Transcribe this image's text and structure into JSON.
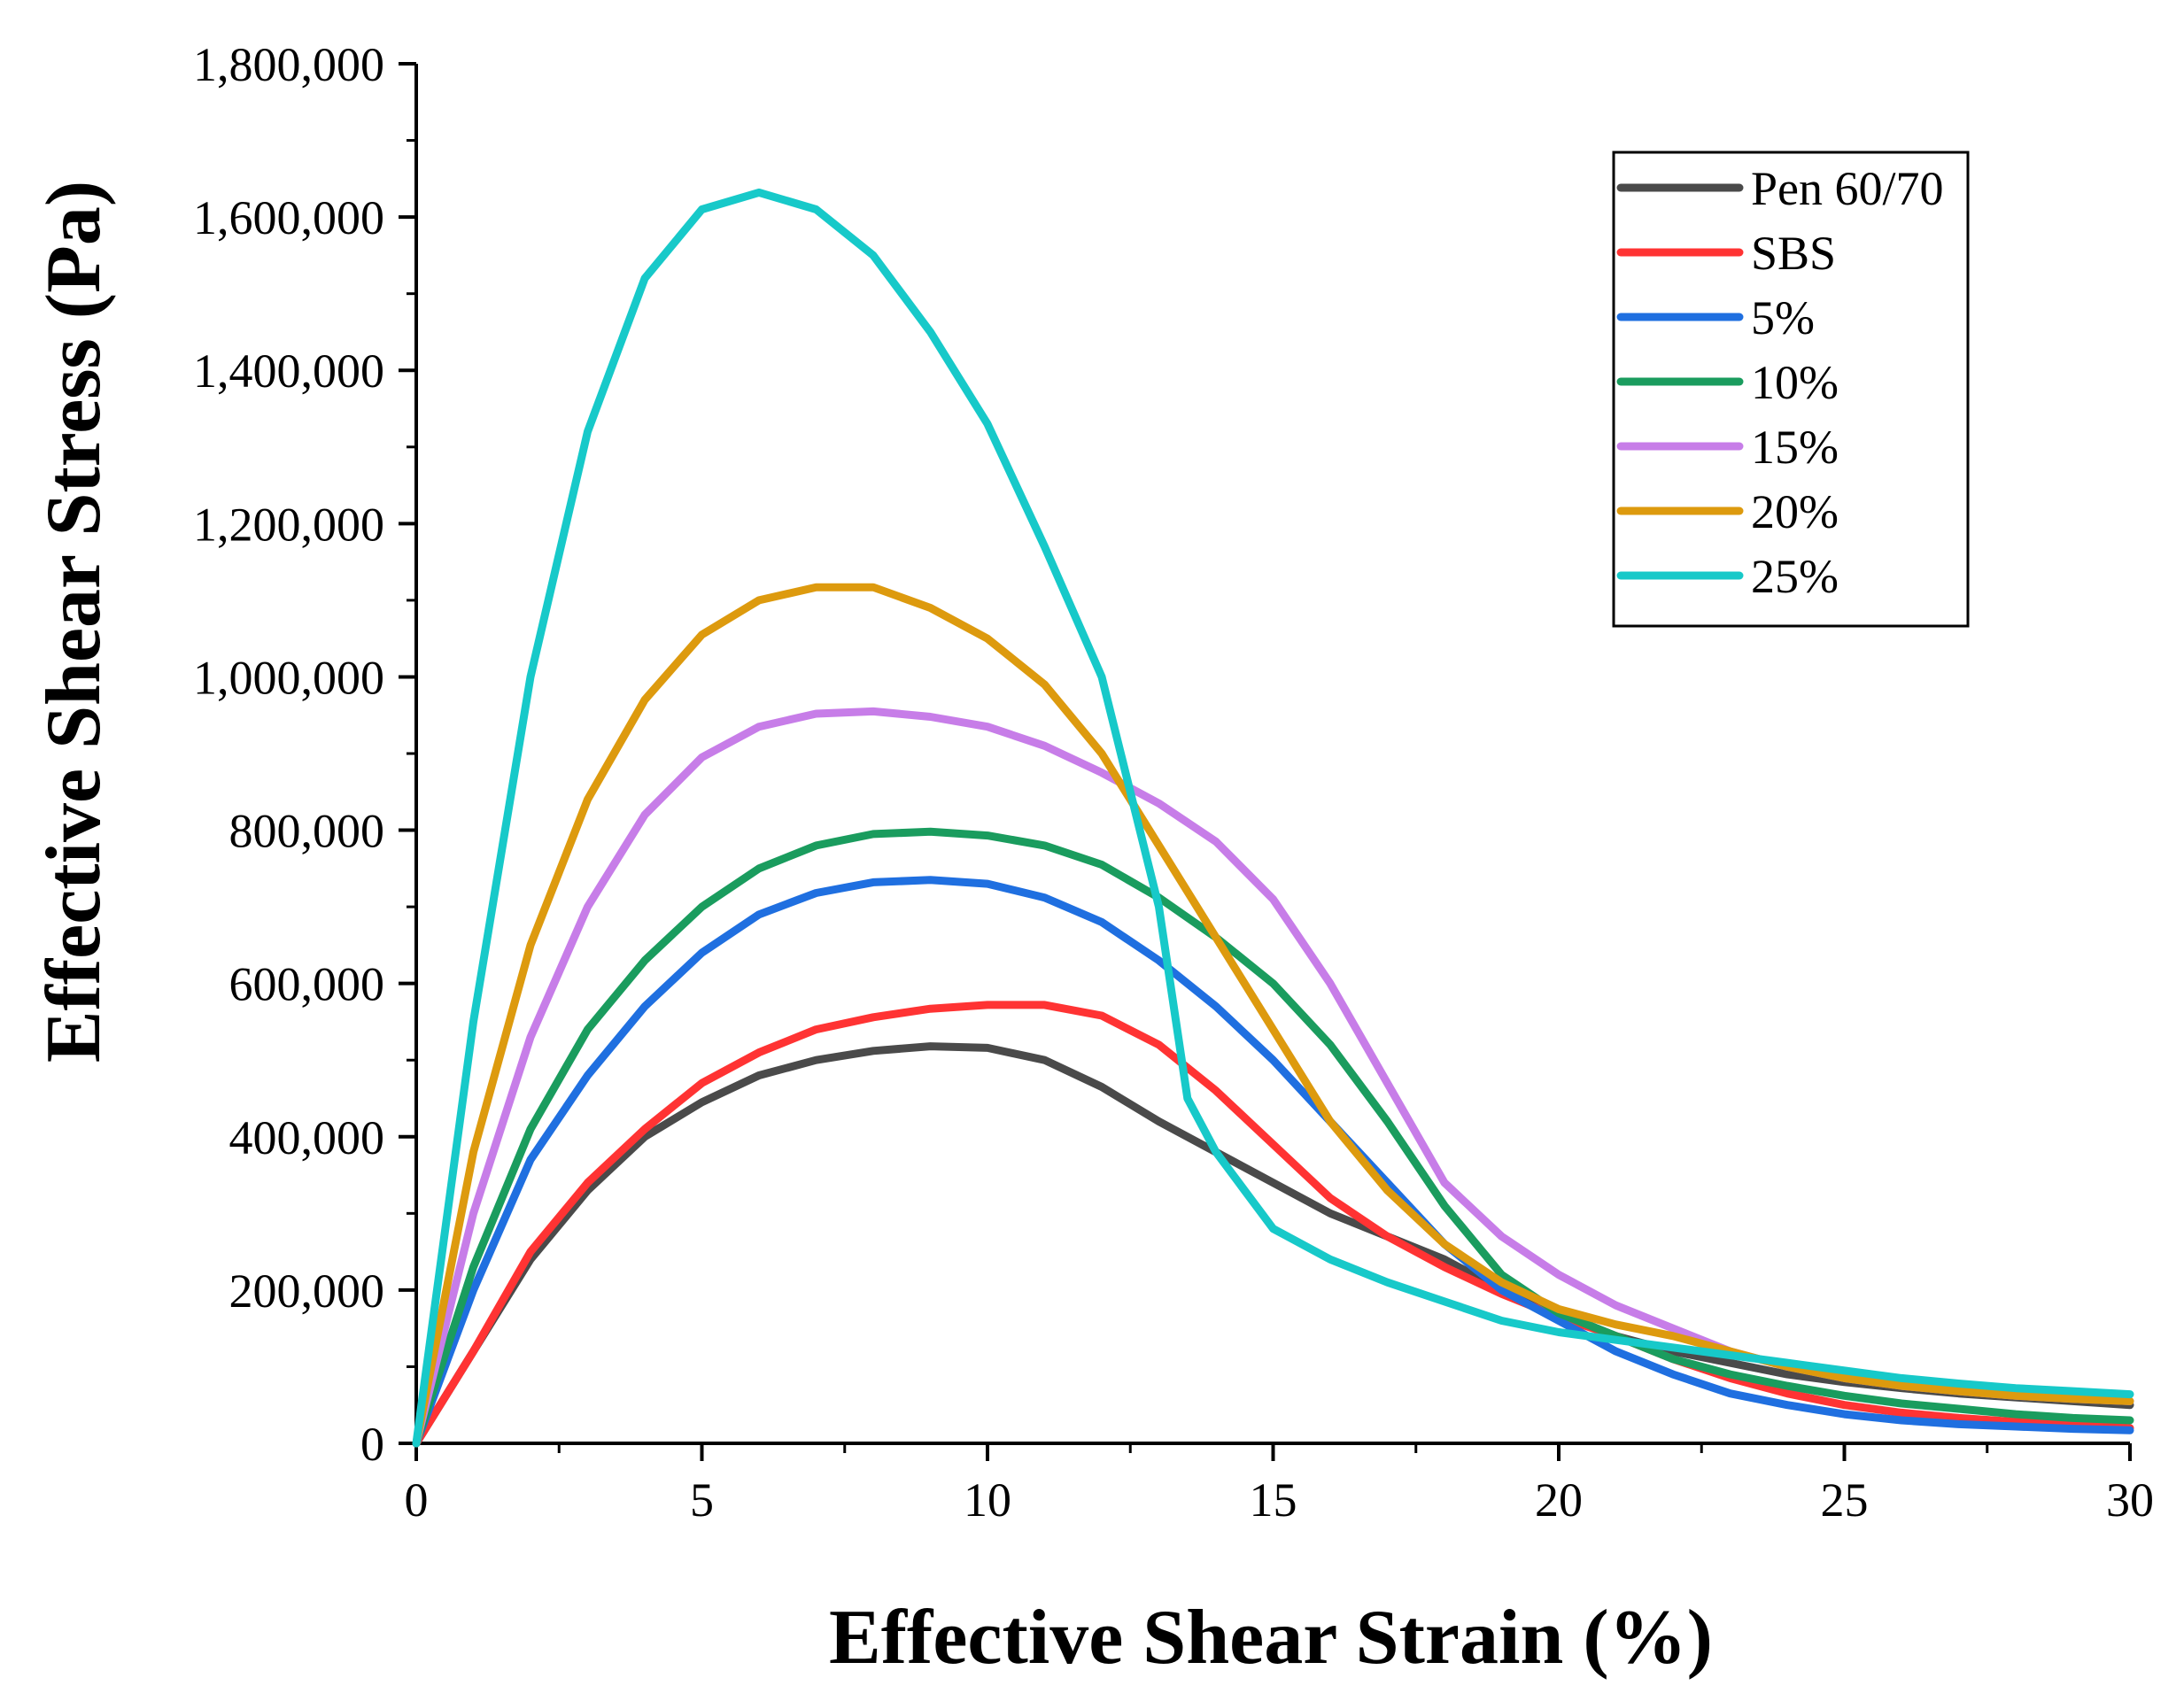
{
  "chart_data": {
    "type": "line",
    "xlabel": "Effective Shear Strain (%)",
    "ylabel": "Effective Shear Stress (Pa)",
    "xlim": [
      0,
      30
    ],
    "ylim": [
      0,
      1800000
    ],
    "x_ticks": [
      0,
      5,
      10,
      15,
      20,
      25,
      30
    ],
    "x_tick_labels": [
      "0",
      "5",
      "10",
      "15",
      "20",
      "25",
      "30"
    ],
    "y_ticks": [
      0,
      200000,
      400000,
      600000,
      800000,
      1000000,
      1200000,
      1400000,
      1600000,
      1800000
    ],
    "y_tick_labels": [
      "0",
      "200,000",
      "400,000",
      "600,000",
      "800,000",
      "1,000,000",
      "1,200,000",
      "1,400,000",
      "1,600,000",
      "1,800,000"
    ],
    "grid": false,
    "legend_position": "top-right",
    "series": [
      {
        "name": "Pen 60/70",
        "color": "#4a4a4a",
        "x": [
          0,
          1,
          2,
          3,
          4,
          5,
          6,
          7,
          8,
          9,
          10,
          11,
          12,
          13,
          14,
          15,
          16,
          17,
          18,
          19,
          20,
          21,
          22,
          23,
          24,
          25,
          26,
          27,
          28,
          29,
          30
        ],
        "y": [
          0,
          120000,
          240000,
          330000,
          400000,
          445000,
          480000,
          500000,
          512000,
          518000,
          516000,
          500000,
          465000,
          420000,
          380000,
          340000,
          300000,
          270000,
          240000,
          200000,
          170000,
          140000,
          120000,
          105000,
          90000,
          80000,
          72000,
          65000,
          60000,
          55000,
          50000
        ]
      },
      {
        "name": "SBS",
        "color": "#ff3333",
        "x": [
          0,
          1,
          2,
          3,
          4,
          5,
          6,
          7,
          8,
          9,
          10,
          11,
          12,
          13,
          14,
          15,
          16,
          17,
          18,
          19,
          20,
          21,
          22,
          23,
          24,
          25,
          26,
          27,
          28,
          29,
          30
        ],
        "y": [
          0,
          120000,
          250000,
          340000,
          410000,
          470000,
          510000,
          540000,
          556000,
          567000,
          572000,
          572000,
          558000,
          520000,
          460000,
          390000,
          320000,
          270000,
          230000,
          195000,
          165000,
          140000,
          110000,
          85000,
          65000,
          50000,
          40000,
          33000,
          28000,
          24000,
          20000
        ]
      },
      {
        "name": "5%",
        "color": "#1f6fe0",
        "x": [
          0,
          1,
          2,
          3,
          4,
          5,
          6,
          7,
          8,
          9,
          10,
          11,
          12,
          13,
          14,
          15,
          16,
          17,
          18,
          19,
          20,
          21,
          22,
          23,
          24,
          25,
          26,
          27,
          28,
          29,
          30
        ],
        "y": [
          0,
          200000,
          370000,
          480000,
          570000,
          640000,
          690000,
          718000,
          732000,
          735000,
          730000,
          712000,
          680000,
          630000,
          570000,
          500000,
          420000,
          340000,
          260000,
          200000,
          160000,
          120000,
          90000,
          65000,
          50000,
          38000,
          30000,
          25000,
          22000,
          19000,
          17000
        ]
      },
      {
        "name": "10%",
        "color": "#1a9c5e",
        "x": [
          0,
          1,
          2,
          3,
          4,
          5,
          6,
          7,
          8,
          9,
          10,
          11,
          12,
          13,
          14,
          15,
          16,
          17,
          18,
          19,
          20,
          21,
          22,
          23,
          24,
          25,
          26,
          27,
          28,
          29,
          30
        ],
        "y": [
          0,
          230000,
          410000,
          540000,
          630000,
          700000,
          750000,
          780000,
          795000,
          798000,
          793000,
          780000,
          755000,
          712000,
          660000,
          600000,
          520000,
          420000,
          310000,
          220000,
          170000,
          140000,
          110000,
          90000,
          75000,
          62000,
          52000,
          45000,
          38000,
          33000,
          30000
        ]
      },
      {
        "name": "15%",
        "color": "#c77de8",
        "x": [
          0,
          1,
          2,
          3,
          4,
          5,
          6,
          7,
          8,
          9,
          10,
          11,
          12,
          13,
          14,
          15,
          16,
          17,
          18,
          19,
          20,
          21,
          22,
          23,
          24,
          25,
          26,
          27,
          28,
          29,
          30
        ],
        "y": [
          0,
          300000,
          530000,
          700000,
          820000,
          895000,
          935000,
          952000,
          955000,
          948000,
          935000,
          910000,
          875000,
          835000,
          785000,
          710000,
          600000,
          470000,
          340000,
          270000,
          220000,
          180000,
          150000,
          120000,
          100000,
          85000,
          75000,
          68000,
          62000,
          58000,
          55000
        ]
      },
      {
        "name": "20%",
        "color": "#dd9a0e",
        "x": [
          0,
          1,
          2,
          3,
          4,
          5,
          6,
          7,
          8,
          9,
          10,
          11,
          12,
          13,
          14,
          15,
          16,
          17,
          18,
          19,
          20,
          21,
          22,
          23,
          24,
          25,
          26,
          27,
          28,
          29,
          30
        ],
        "y": [
          0,
          380000,
          650000,
          840000,
          970000,
          1055000,
          1100000,
          1117000,
          1117000,
          1090000,
          1050000,
          990000,
          900000,
          780000,
          660000,
          540000,
          420000,
          330000,
          260000,
          210000,
          175000,
          155000,
          140000,
          120000,
          100000,
          85000,
          75000,
          68000,
          62000,
          58000,
          55000
        ]
      },
      {
        "name": "25%",
        "color": "#17c9c9",
        "x": [
          0,
          1,
          2,
          3,
          4,
          5,
          6,
          7,
          8,
          9,
          10,
          11,
          12,
          13,
          13.5,
          14,
          15,
          16,
          17,
          18,
          19,
          20,
          21,
          22,
          23,
          24,
          25,
          26,
          27,
          28,
          29,
          30
        ],
        "y": [
          0,
          550000,
          1000000,
          1320000,
          1520000,
          1610000,
          1632000,
          1610000,
          1550000,
          1450000,
          1330000,
          1170000,
          1000000,
          700000,
          450000,
          380000,
          280000,
          240000,
          210000,
          185000,
          160000,
          145000,
          135000,
          125000,
          115000,
          105000,
          95000,
          85000,
          78000,
          72000,
          68000,
          64000
        ]
      }
    ]
  }
}
